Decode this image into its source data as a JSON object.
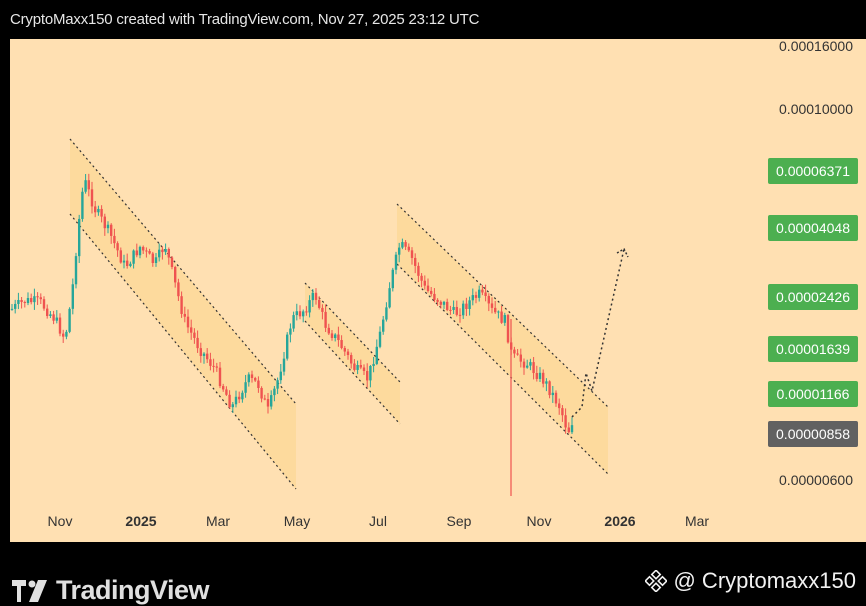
{
  "header": {
    "title": "CryptoMaxx150 created with TradingView.com, Nov 27, 2025 23:12 UTC"
  },
  "footer": {
    "brand": "TradingView",
    "handle": "@ Cryptomaxx150"
  },
  "colors": {
    "background": "#ffe0b2",
    "up": "#26a69a",
    "down": "#ef5350",
    "channel_fill": "#fdd99a",
    "label_green": "#4caf50",
    "label_gray": "#616161"
  },
  "chart_data": {
    "type": "candlestick",
    "x_ticks": [
      "Nov",
      "2025",
      "Mar",
      "May",
      "Jul",
      "Sep",
      "Nov",
      "2026",
      "Mar"
    ],
    "y_ticks": [
      "0.00016000",
      "0.00010000",
      "0.00000600"
    ],
    "price_labels": [
      {
        "value": "0.00006371",
        "style": "green"
      },
      {
        "value": "0.00004048",
        "style": "green"
      },
      {
        "value": "0.00002426",
        "style": "green"
      },
      {
        "value": "0.00001639",
        "style": "green"
      },
      {
        "value": "0.00001166",
        "style": "green"
      },
      {
        "value": "0.00000858",
        "style": "gray"
      }
    ],
    "y_scale": "log",
    "channels": 3,
    "projection": "dotted arrow from 0.00000858 up toward 0.00004048"
  }
}
